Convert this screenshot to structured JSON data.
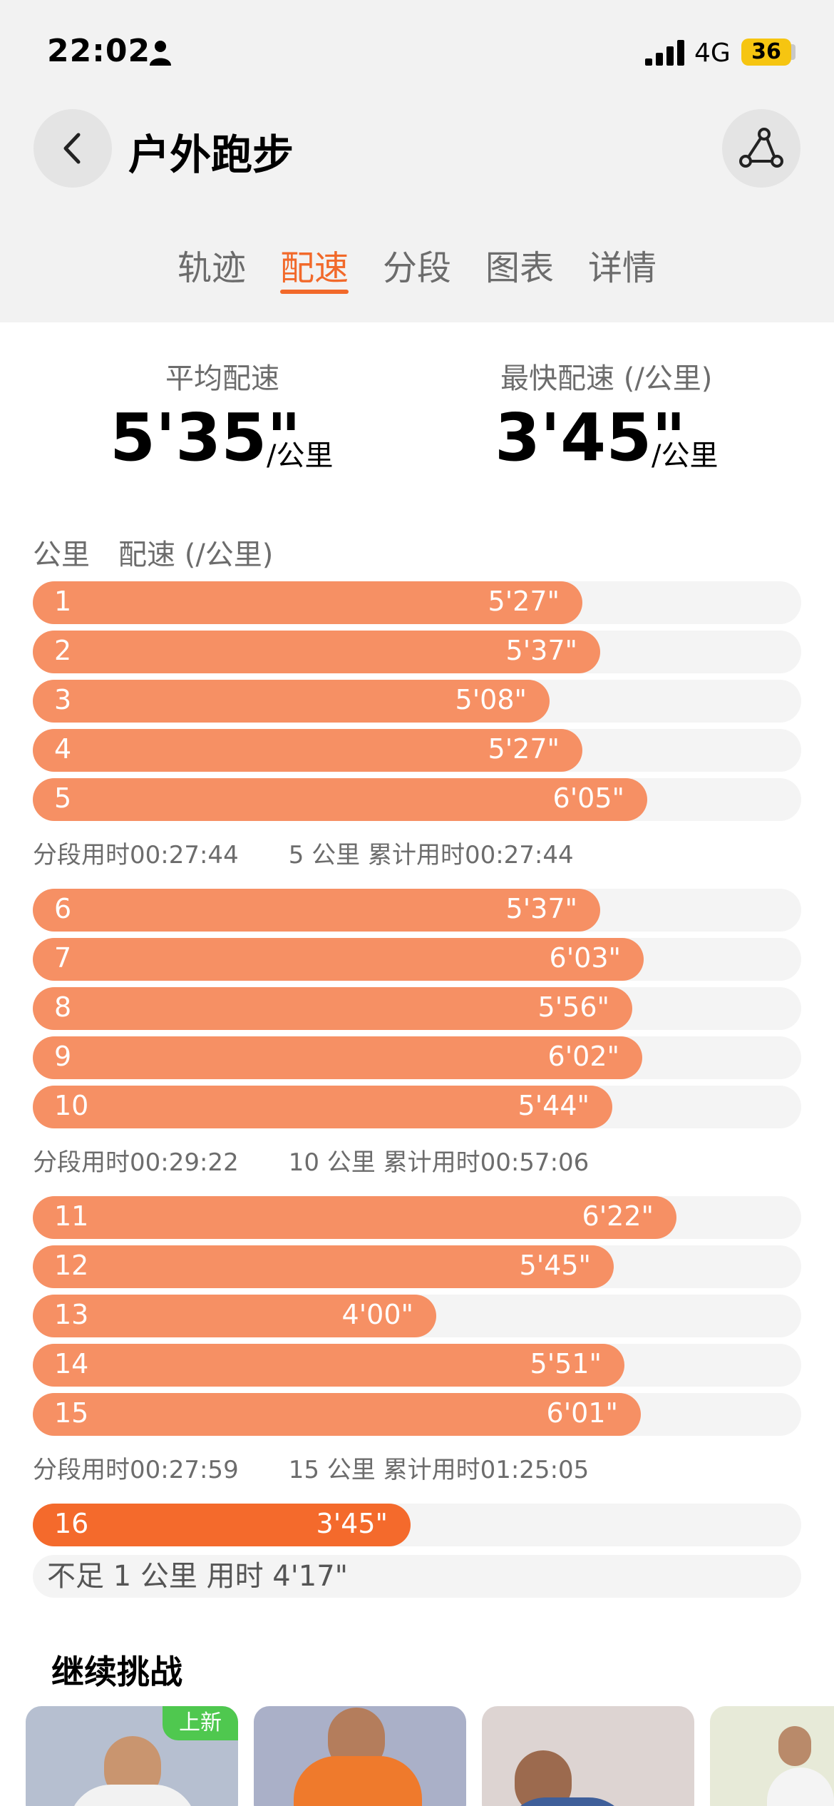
{
  "status_bar": {
    "time": "22:02",
    "network": "4G",
    "battery": "36"
  },
  "header": {
    "title": "户外跑步"
  },
  "tabs": [
    {
      "label": "轨迹",
      "active": false
    },
    {
      "label": "配速",
      "active": true
    },
    {
      "label": "分段",
      "active": false
    },
    {
      "label": "图表",
      "active": false
    },
    {
      "label": "详情",
      "active": false
    }
  ],
  "summary": {
    "avg_label": "平均配速",
    "avg_value": "5'35\"",
    "fastest_label": "最快配速 (/公里)",
    "fastest_value": "3'45\"",
    "unit": "/公里"
  },
  "list": {
    "col_km": "公里",
    "col_pace": "配速 (/公里)",
    "rows": [
      {
        "km": "1",
        "pace": "5'27\"",
        "fill": 0.715
      },
      {
        "km": "2",
        "pace": "5'37\"",
        "fill": 0.738
      },
      {
        "km": "3",
        "pace": "5'08\"",
        "fill": 0.673
      },
      {
        "km": "4",
        "pace": "5'27\"",
        "fill": 0.715
      },
      {
        "km": "5",
        "pace": "6'05\"",
        "fill": 0.8
      },
      {
        "km": "6",
        "pace": "5'37\"",
        "fill": 0.738
      },
      {
        "km": "7",
        "pace": "6'03\"",
        "fill": 0.795
      },
      {
        "km": "8",
        "pace": "5'56\"",
        "fill": 0.78
      },
      {
        "km": "9",
        "pace": "6'02\"",
        "fill": 0.793
      },
      {
        "km": "10",
        "pace": "5'44\"",
        "fill": 0.754
      },
      {
        "km": "11",
        "pace": "6'22\"",
        "fill": 0.838
      },
      {
        "km": "12",
        "pace": "5'45\"",
        "fill": 0.756
      },
      {
        "km": "13",
        "pace": "4'00\"",
        "fill": 0.525
      },
      {
        "km": "14",
        "pace": "5'51\"",
        "fill": 0.77
      },
      {
        "km": "15",
        "pace": "6'01\"",
        "fill": 0.791
      },
      {
        "km": "16",
        "pace": "3'45\"",
        "fill": 0.492,
        "fastest": true
      }
    ],
    "segments": [
      {
        "split": "分段用时00:27:44",
        "cumulative": "5 公里 累计用时00:27:44"
      },
      {
        "split": "分段用时00:29:22",
        "cumulative": "10 公里 累计用时00:57:06"
      },
      {
        "split": "分段用时00:27:59",
        "cumulative": "15 公里 累计用时01:25:05"
      }
    ],
    "remainder": "不足 1 公里 用时 4'17\""
  },
  "challenge": {
    "title": "继续挑战",
    "badge": "上新",
    "colors": [
      "#b6bfd0",
      "#aab0c8",
      "#ddd4d2",
      "#e7ead8"
    ]
  }
}
